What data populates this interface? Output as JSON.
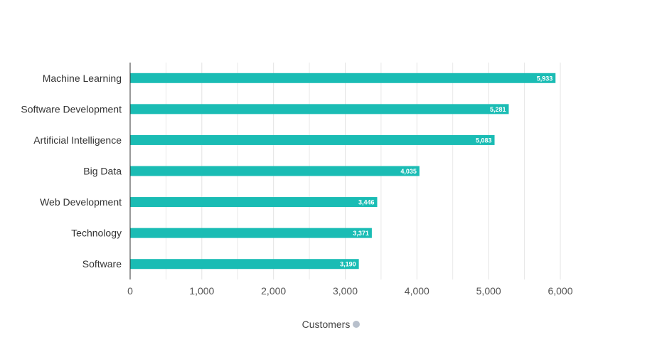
{
  "chart_data": {
    "type": "bar",
    "orientation": "horizontal",
    "categories": [
      "Machine Learning",
      "Software Development",
      "Artificial Intelligence",
      "Big Data",
      "Web Development",
      "Technology",
      "Software"
    ],
    "values": [
      5933,
      5281,
      5083,
      4035,
      3446,
      3371,
      3190
    ],
    "value_labels": [
      "5,933",
      "5,281",
      "5,083",
      "4,035",
      "3,446",
      "3,371",
      "3,190"
    ],
    "xlabel": "Customers",
    "xlim": [
      0,
      6000
    ],
    "xticks": [
      0,
      1000,
      2000,
      3000,
      4000,
      5000,
      6000
    ],
    "xtick_labels": [
      "0",
      "1,000",
      "2,000",
      "3,000",
      "4,000",
      "5,000",
      "6,000"
    ],
    "grid": true,
    "bar_color": "#1abcb4"
  },
  "colors": {
    "bar": "#1abcb4",
    "grid": "#e3e3e3",
    "axis": "#333333"
  },
  "icons": {
    "xlabel_info": "info-icon"
  }
}
